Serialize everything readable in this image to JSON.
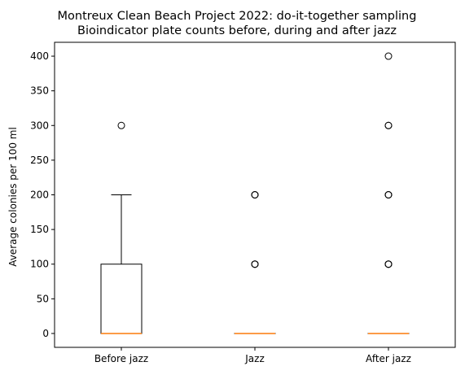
{
  "chart_data": {
    "type": "boxplot",
    "title_line1": "Montreux Clean Beach Project 2022: do-it-together sampling",
    "title_line2": "Bioindicator plate counts before, during and after jazz",
    "xlabel": "",
    "ylabel": "Average colonies per 100 ml",
    "ylim": [
      -20,
      420
    ],
    "yticks": [
      0,
      50,
      100,
      150,
      200,
      250,
      300,
      350,
      400
    ],
    "grid": false,
    "categories": [
      "Before jazz",
      "Jazz",
      "After jazz"
    ],
    "boxes": [
      {
        "category": "Before jazz",
        "q1": 0,
        "median": 0,
        "q3": 100,
        "whisker_low": 0,
        "whisker_high": 200,
        "outliers": [
          300
        ]
      },
      {
        "category": "Jazz",
        "q1": 0,
        "median": 0,
        "q3": 0,
        "whisker_low": 0,
        "whisker_high": 0,
        "outliers": [
          100,
          100,
          100,
          200,
          200,
          200
        ]
      },
      {
        "category": "After jazz",
        "q1": 0,
        "median": 0,
        "q3": 0,
        "whisker_low": 0,
        "whisker_high": 0,
        "outliers": [
          100,
          100,
          100,
          200,
          200,
          200,
          300,
          300,
          400
        ]
      }
    ],
    "colors": {
      "box": "#000000",
      "median": "#ff7f0e",
      "outlier": "#000000"
    }
  }
}
